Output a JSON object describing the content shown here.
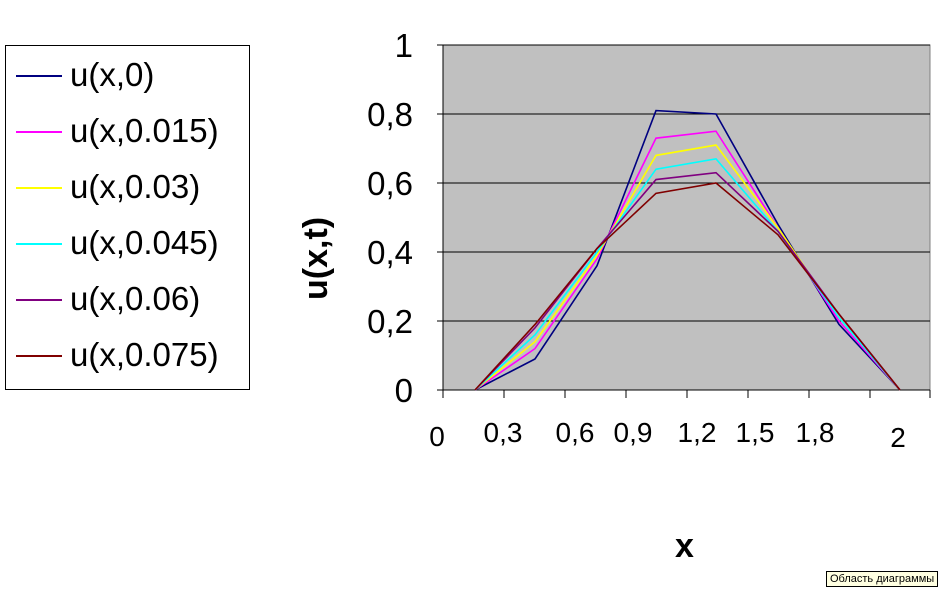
{
  "chart_data": {
    "type": "line",
    "xlabel": "x",
    "ylabel": "u(x,t)",
    "ylim": [
      0,
      1
    ],
    "xlim": [
      0,
      2.05
    ],
    "y_ticks": [
      "0",
      "0,2",
      "0,4",
      "0,6",
      "0,8",
      "1"
    ],
    "y_tick_values": [
      0,
      0.2,
      0.4,
      0.6,
      0.8,
      1
    ],
    "x_ticks": [
      "0",
      "0,3",
      "0,6",
      "0,9",
      "1,2",
      "1,5",
      "1,8",
      "2"
    ],
    "x_tick_values": [
      0,
      0.3,
      0.6,
      0.9,
      1.2,
      1.5,
      1.8,
      2.0
    ],
    "plot_background": "#c0c0c0",
    "grid": true,
    "legend_position": "left",
    "x": [
      0.16,
      0.44,
      0.75,
      1.04,
      1.33,
      1.63,
      1.92,
      2.2
    ],
    "series": [
      {
        "name": "u(x,0)",
        "color": "#000080",
        "values": [
          0,
          0.09,
          0.36,
          0.81,
          0.8,
          0.48,
          0.19,
          0
        ]
      },
      {
        "name": "u(x,0.015)",
        "color": "#ff00ff",
        "values": [
          0,
          0.12,
          0.38,
          0.73,
          0.75,
          0.47,
          0.2,
          0
        ]
      },
      {
        "name": "u(x,0.03)",
        "color": "#ffff00",
        "values": [
          0,
          0.14,
          0.39,
          0.68,
          0.71,
          0.47,
          0.21,
          0
        ]
      },
      {
        "name": "u(x,0.045)",
        "color": "#00ffff",
        "values": [
          0,
          0.16,
          0.4,
          0.64,
          0.67,
          0.46,
          0.21,
          0
        ]
      },
      {
        "name": "u(x,0.06)",
        "color": "#800080",
        "values": [
          0,
          0.18,
          0.41,
          0.61,
          0.63,
          0.46,
          0.22,
          0
        ]
      },
      {
        "name": "u(x,0.075)",
        "color": "#800000",
        "values": [
          0,
          0.19,
          0.41,
          0.57,
          0.6,
          0.45,
          0.22,
          0
        ]
      }
    ]
  },
  "tooltip": "Область диаграммы"
}
